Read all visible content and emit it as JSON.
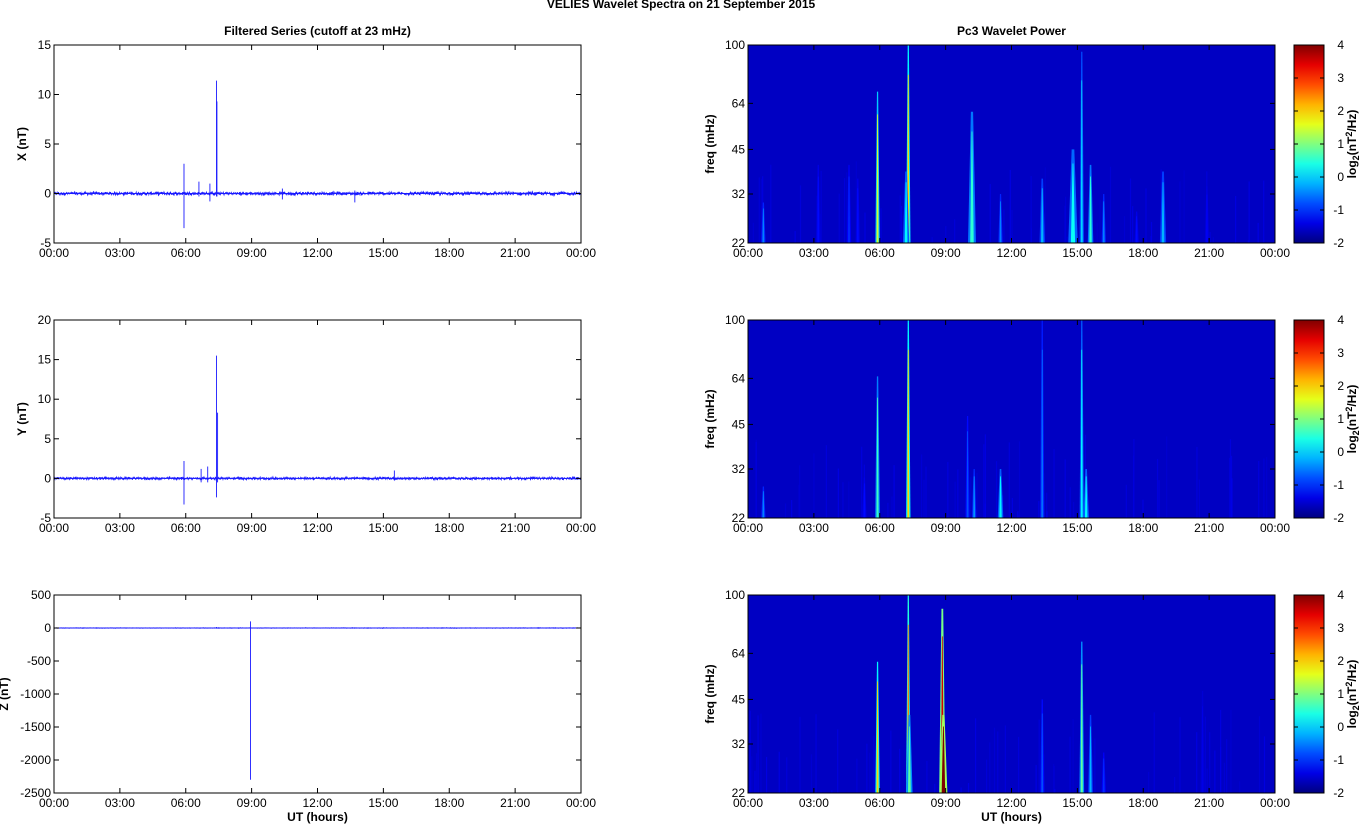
{
  "suptitle": "VELIES Wavelet Spectra on 21 September 2015",
  "colors": {
    "trace": "#1a1aff",
    "background_spec": "#00008b",
    "axis": "#000000"
  },
  "time_ticks": [
    "00:00",
    "03:00",
    "06:00",
    "09:00",
    "12:00",
    "15:00",
    "18:00",
    "21:00",
    "00:00"
  ],
  "chart_data": [
    {
      "type": "line",
      "panel": "left-top",
      "title": "Filtered Series (cutoff at 23 mHz)",
      "xlabel": "",
      "ylabel": "X (nT)",
      "xlim_hours": [
        0,
        24
      ],
      "ylim": [
        -5,
        15
      ],
      "yticks": [
        -5,
        0,
        5,
        10,
        15
      ],
      "xticks": [
        "00:00",
        "03:00",
        "06:00",
        "09:00",
        "12:00",
        "15:00",
        "18:00",
        "21:00",
        "00:00"
      ],
      "baseline": 0,
      "noise_amplitude": 0.15,
      "spikes": [
        {
          "hour": 5.92,
          "min": -3.5,
          "max": 3.0
        },
        {
          "hour": 6.6,
          "min": -0.3,
          "max": 1.2
        },
        {
          "hour": 7.1,
          "min": -0.8,
          "max": 1.0
        },
        {
          "hour": 7.4,
          "min": -0.3,
          "max": 11.4
        },
        {
          "hour": 7.42,
          "min": -0.3,
          "max": 9.3
        },
        {
          "hour": 10.4,
          "min": -0.6,
          "max": 0.5
        },
        {
          "hour": 13.7,
          "min": -0.9,
          "max": 0.3
        }
      ]
    },
    {
      "type": "line",
      "panel": "left-middle",
      "title": "",
      "xlabel": "",
      "ylabel": "Y (nT)",
      "xlim_hours": [
        0,
        24
      ],
      "ylim": [
        -5,
        20
      ],
      "yticks": [
        -5,
        0,
        5,
        10,
        15,
        20
      ],
      "xticks": [
        "00:00",
        "03:00",
        "06:00",
        "09:00",
        "12:00",
        "15:00",
        "18:00",
        "21:00",
        "00:00"
      ],
      "baseline": 0,
      "noise_amplitude": 0.15,
      "spikes": [
        {
          "hour": 5.92,
          "min": -3.3,
          "max": 2.2
        },
        {
          "hour": 6.7,
          "min": -0.5,
          "max": 1.2
        },
        {
          "hour": 7.0,
          "min": -0.5,
          "max": 1.5
        },
        {
          "hour": 7.4,
          "min": -2.4,
          "max": 15.5
        },
        {
          "hour": 7.45,
          "min": -0.5,
          "max": 8.3
        },
        {
          "hour": 15.5,
          "min": -0.2,
          "max": 1.0
        }
      ]
    },
    {
      "type": "line",
      "panel": "left-bottom",
      "title": "",
      "xlabel": "UT (hours)",
      "ylabel": "Z (nT)",
      "xlim_hours": [
        0,
        24
      ],
      "ylim": [
        -2500,
        500
      ],
      "yticks": [
        -2500,
        -2000,
        -1500,
        -1000,
        -500,
        0,
        500
      ],
      "xticks": [
        "00:00",
        "03:00",
        "06:00",
        "09:00",
        "12:00",
        "15:00",
        "18:00",
        "21:00",
        "00:00"
      ],
      "baseline": 0,
      "noise_amplitude": 4,
      "spikes": [
        {
          "hour": 7.4,
          "min": -10,
          "max": 15
        },
        {
          "hour": 8.95,
          "min": -2300,
          "max": 100
        }
      ]
    },
    {
      "type": "heatmap",
      "panel": "right-top",
      "title": "Pc3 Wavelet Power",
      "xlabel": "",
      "ylabel": "freq (mHz)",
      "xlim_hours": [
        0,
        24
      ],
      "ylim": [
        22,
        100
      ],
      "yscale": "log",
      "yticks": [
        22,
        32,
        45,
        64,
        100
      ],
      "xticks": [
        "00:00",
        "03:00",
        "06:00",
        "09:00",
        "12:00",
        "15:00",
        "18:00",
        "21:00",
        "00:00"
      ],
      "colorbar_label": "log2(nT2/Hz)",
      "clim": [
        -2,
        4
      ],
      "colorbar_ticks": [
        4,
        3,
        2,
        1,
        0,
        -1,
        -2
      ],
      "streaks": [
        {
          "hour": 0.7,
          "f_top": 30,
          "peak": -0.5,
          "width": 0.05
        },
        {
          "hour": 3.2,
          "f_top": 40,
          "peak": -1.2,
          "width": 0.04
        },
        {
          "hour": 4.6,
          "f_top": 40,
          "peak": -1.0,
          "width": 0.05
        },
        {
          "hour": 5.0,
          "f_top": 36,
          "peak": -1.2,
          "width": 0.04
        },
        {
          "hour": 5.9,
          "f_top": 70,
          "peak": 1.5,
          "width": 0.05
        },
        {
          "hour": 7.3,
          "f_top": 100,
          "peak": 2.0,
          "width": 0.05
        },
        {
          "hour": 7.2,
          "f_top": 38,
          "peak": 0.2,
          "width": 0.08
        },
        {
          "hour": 10.2,
          "f_top": 60,
          "peak": 0.5,
          "width": 0.1
        },
        {
          "hour": 11.5,
          "f_top": 32,
          "peak": -0.5,
          "width": 0.05
        },
        {
          "hour": 13.4,
          "f_top": 36,
          "peak": -0.2,
          "width": 0.07
        },
        {
          "hour": 14.8,
          "f_top": 45,
          "peak": 0.3,
          "width": 0.12
        },
        {
          "hour": 15.2,
          "f_top": 95,
          "peak": 0.0,
          "width": 0.05
        },
        {
          "hour": 15.6,
          "f_top": 40,
          "peak": 0.5,
          "width": 0.07
        },
        {
          "hour": 16.2,
          "f_top": 32,
          "peak": -0.5,
          "width": 0.05
        },
        {
          "hour": 17.7,
          "f_top": 28,
          "peak": -1.2,
          "width": 0.04
        },
        {
          "hour": 18.9,
          "f_top": 38,
          "peak": -0.2,
          "width": 0.08
        },
        {
          "hour": 20.9,
          "f_top": 34,
          "peak": -1.3,
          "width": 0.04
        }
      ]
    },
    {
      "type": "heatmap",
      "panel": "right-middle",
      "title": "",
      "xlabel": "",
      "ylabel": "freq (mHz)",
      "xlim_hours": [
        0,
        24
      ],
      "ylim": [
        22,
        100
      ],
      "yscale": "log",
      "yticks": [
        22,
        32,
        45,
        64,
        100
      ],
      "xticks": [
        "00:00",
        "03:00",
        "06:00",
        "09:00",
        "12:00",
        "15:00",
        "18:00",
        "21:00",
        "00:00"
      ],
      "colorbar_label": "log2(nT2/Hz)",
      "clim": [
        -2,
        4
      ],
      "colorbar_ticks": [
        4,
        3,
        2,
        1,
        0,
        -1,
        -2
      ],
      "streaks": [
        {
          "hour": 0.7,
          "f_top": 28,
          "peak": -0.5,
          "width": 0.05
        },
        {
          "hour": 5.3,
          "f_top": 30,
          "peak": -1.2,
          "width": 0.04
        },
        {
          "hour": 5.9,
          "f_top": 65,
          "peak": 0.6,
          "width": 0.06
        },
        {
          "hour": 7.3,
          "f_top": 100,
          "peak": 2.0,
          "width": 0.05
        },
        {
          "hour": 10.0,
          "f_top": 48,
          "peak": -0.8,
          "width": 0.04
        },
        {
          "hour": 10.3,
          "f_top": 32,
          "peak": -0.4,
          "width": 0.05
        },
        {
          "hour": 11.5,
          "f_top": 32,
          "peak": 0.2,
          "width": 0.07
        },
        {
          "hour": 13.4,
          "f_top": 100,
          "peak": -0.6,
          "width": 0.05
        },
        {
          "hour": 15.2,
          "f_top": 100,
          "peak": 0.2,
          "width": 0.05
        },
        {
          "hour": 15.4,
          "f_top": 32,
          "peak": 0.2,
          "width": 0.07
        }
      ]
    },
    {
      "type": "heatmap",
      "panel": "right-bottom",
      "title": "",
      "xlabel": "UT (hours)",
      "ylabel": "freq (mHz)",
      "xlim_hours": [
        0,
        24
      ],
      "ylim": [
        22,
        100
      ],
      "yscale": "log",
      "yticks": [
        22,
        32,
        45,
        64,
        100
      ],
      "xticks": [
        "00:00",
        "03:00",
        "06:00",
        "09:00",
        "12:00",
        "15:00",
        "18:00",
        "21:00",
        "00:00"
      ],
      "colorbar_label": "log2(nT2/Hz)",
      "clim": [
        -2,
        4
      ],
      "colorbar_ticks": [
        4,
        3,
        2,
        1,
        0,
        -1,
        -2
      ],
      "streaks": [
        {
          "hour": 5.9,
          "f_top": 60,
          "peak": 2.0,
          "width": 0.05
        },
        {
          "hour": 7.3,
          "f_top": 100,
          "peak": 2.5,
          "width": 0.05
        },
        {
          "hour": 7.35,
          "f_top": 40,
          "peak": 0.8,
          "width": 0.08
        },
        {
          "hour": 8.85,
          "f_top": 90,
          "peak": 3.5,
          "width": 0.08
        },
        {
          "hour": 8.9,
          "f_top": 40,
          "peak": 4.0,
          "width": 0.1
        },
        {
          "hour": 13.4,
          "f_top": 45,
          "peak": -0.8,
          "width": 0.05
        },
        {
          "hour": 15.2,
          "f_top": 70,
          "peak": 0.8,
          "width": 0.06
        },
        {
          "hour": 15.6,
          "f_top": 40,
          "peak": -0.2,
          "width": 0.06
        },
        {
          "hour": 16.2,
          "f_top": 30,
          "peak": -1.0,
          "width": 0.05
        },
        {
          "hour": 20.7,
          "f_top": 48,
          "peak": -1.4,
          "width": 0.04
        }
      ]
    }
  ]
}
